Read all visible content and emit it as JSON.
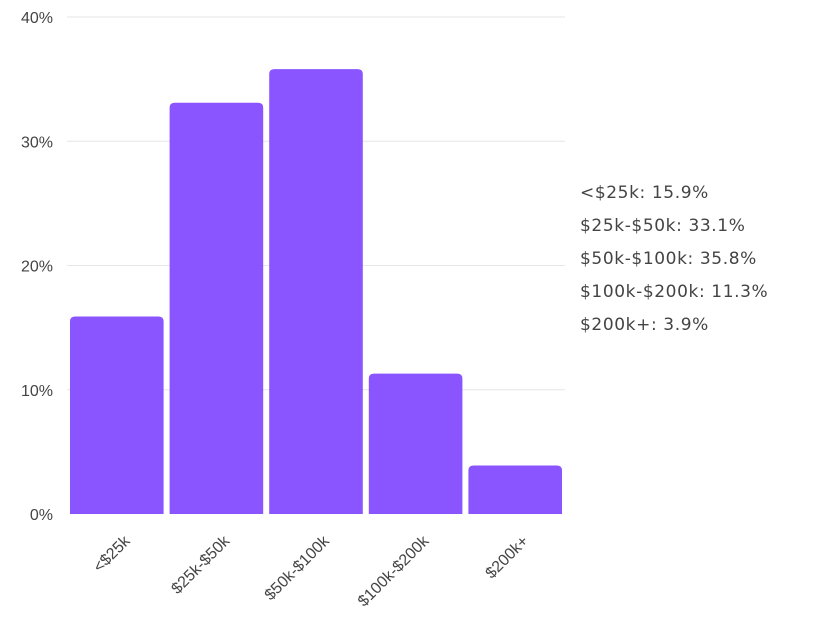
{
  "chart_data": {
    "type": "bar",
    "categories": [
      "<$25k",
      "$25k-$50k",
      "$50k-$100k",
      "$100k-$200k",
      "$200k+"
    ],
    "values": [
      15.9,
      33.1,
      35.8,
      11.3,
      3.9
    ],
    "ylim": [
      0,
      40
    ],
    "yticks": [
      0,
      10,
      20,
      30,
      40
    ],
    "ytick_labels": [
      "0%",
      "10%",
      "20%",
      "30%",
      "40%"
    ],
    "grid": true,
    "bar_color": "#8a55ff",
    "grid_color": "#e6e6e6",
    "legend_placement": "right",
    "legend_items": [
      "<$25k: 15.9%",
      "$25k-$50k: 33.1%",
      "$50k-$100k: 35.8%",
      "$100k-$200k: 11.3%",
      "$200k+: 3.9%"
    ]
  }
}
